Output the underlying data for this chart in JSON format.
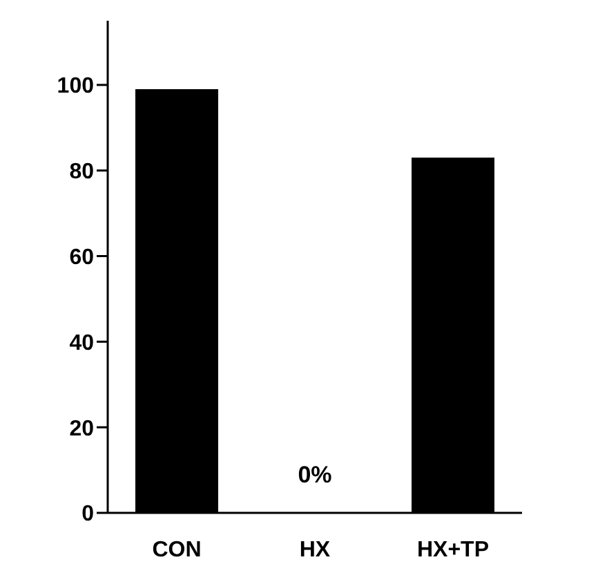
{
  "chart_data": {
    "type": "bar",
    "categories": [
      "CON",
      "HX",
      "HX+TP"
    ],
    "values": [
      99,
      0,
      83
    ],
    "color": "#000000",
    "ylim": [
      0,
      115
    ],
    "yticks": [
      0,
      20,
      40,
      60,
      80,
      100
    ],
    "grid": false,
    "annotations": [
      {
        "text": "0%",
        "x": "HX",
        "y": 0
      }
    ]
  }
}
